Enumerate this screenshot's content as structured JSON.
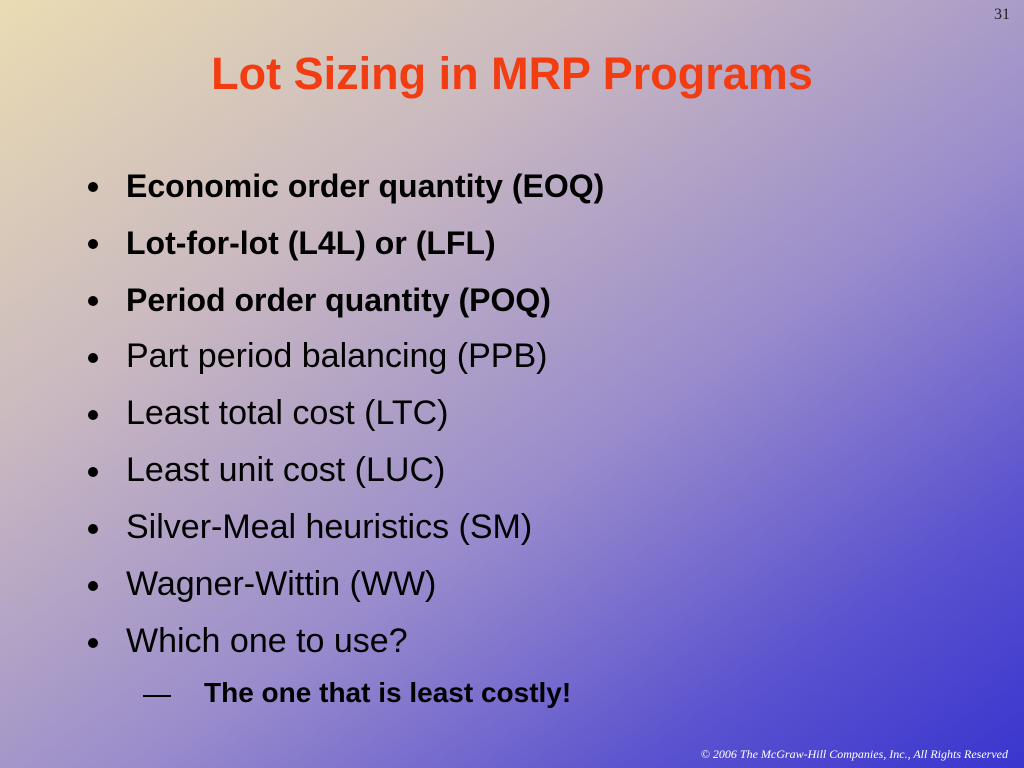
{
  "slide_number": "31",
  "title": "Lot Sizing in MRP Programs",
  "bullets": [
    "Economic order quantity (EOQ)",
    "Lot-for-lot (L4L) or (LFL)",
    "Period order quantity (POQ)",
    "Part period balancing (PPB)",
    "Least total cost (LTC)",
    "Least unit cost (LUC)",
    "Silver-Meal heuristics (SM)",
    "Wagner-Wittin (WW)",
    "Which one to use?"
  ],
  "sub_bullets": [
    "The one that is least costly!"
  ],
  "footer": "© 2006 The McGraw-Hill Companies, Inc., All Rights Reserved"
}
